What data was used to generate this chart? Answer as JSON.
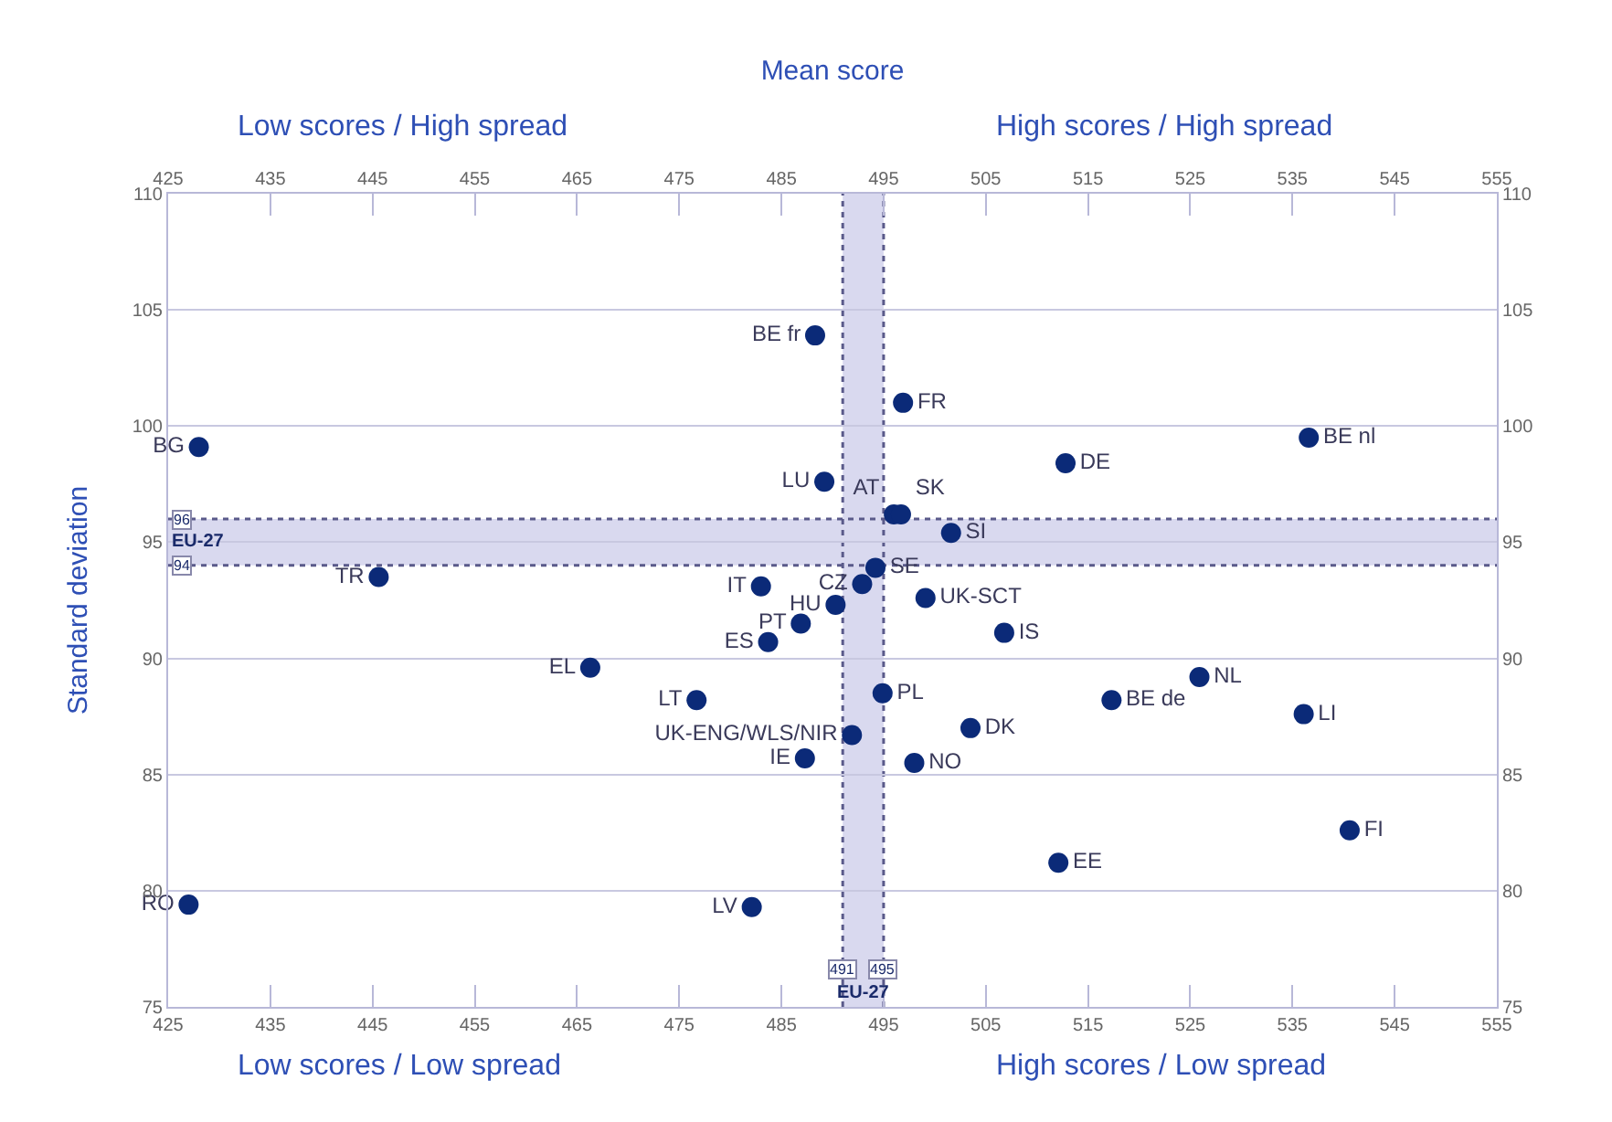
{
  "chart_data": {
    "type": "scatter",
    "x2label": "Mean score",
    "ylabel": "Standard deviation",
    "xlim": [
      425,
      555
    ],
    "xticks": [
      425,
      435,
      445,
      455,
      465,
      475,
      485,
      495,
      505,
      515,
      525,
      535,
      545,
      555
    ],
    "x2lim": [
      425,
      555
    ],
    "x2ticks": [
      425,
      435,
      445,
      455,
      465,
      475,
      485,
      495,
      505,
      515,
      525,
      535,
      545,
      555
    ],
    "ylim": [
      75,
      110
    ],
    "yticks": [
      75,
      80,
      85,
      90,
      95,
      100,
      105,
      110
    ],
    "y2lim": [
      75,
      110
    ],
    "y2ticks": [
      75,
      80,
      85,
      90,
      95,
      100,
      105,
      110
    ],
    "grid": "y",
    "legend": false,
    "marker": "circle",
    "bands": [
      {
        "axis": "y",
        "from": 94,
        "to": 96,
        "label": "EU-27",
        "color": "#d9d9ef"
      },
      {
        "axis": "x",
        "from": 491,
        "to": 495,
        "label": "EU-27",
        "color": "#d9d9ef"
      }
    ],
    "ref_lines": [
      {
        "axis": "y",
        "value": 96,
        "label": "96",
        "color": "#5a5a8a",
        "line_style": "dotted"
      },
      {
        "axis": "y",
        "value": 94,
        "label": "94",
        "color": "#5a5a8a",
        "line_style": "dotted"
      },
      {
        "axis": "x",
        "value": 491,
        "label": "491",
        "color": "#5a5a8a",
        "line_style": "dotted"
      },
      {
        "axis": "x",
        "value": 495,
        "label": "495",
        "color": "#5a5a8a",
        "line_style": "dotted"
      }
    ],
    "annotations": [
      "Low scores / High spread",
      "High scores / High spread",
      "Low scores / Low spread",
      "High scores / Low spread"
    ],
    "series": [
      {
        "name": "BG",
        "color": "#0b2a78",
        "x": [
          428.0
        ],
        "values": [
          99.1
        ]
      },
      {
        "name": "BE fr",
        "color": "#0b2a78",
        "x": [
          488.3
        ],
        "values": [
          103.9
        ]
      },
      {
        "name": "FR",
        "color": "#0b2a78",
        "x": [
          496.9
        ],
        "values": [
          101.0
        ]
      },
      {
        "name": "LU",
        "color": "#0b2a78",
        "x": [
          489.2
        ],
        "values": [
          97.6
        ]
      },
      {
        "name": "AT",
        "color": "#0b2a78",
        "x": [
          496.0
        ],
        "values": [
          96.2
        ]
      },
      {
        "name": "SK",
        "color": "#0b2a78",
        "x": [
          496.7
        ],
        "values": [
          96.2
        ]
      },
      {
        "name": "SI",
        "color": "#0b2a78",
        "x": [
          501.6
        ],
        "values": [
          95.4
        ]
      },
      {
        "name": "DE",
        "color": "#0b2a78",
        "x": [
          512.8
        ],
        "values": [
          98.4
        ]
      },
      {
        "name": "BE nl",
        "color": "#0b2a78",
        "x": [
          536.6
        ],
        "values": [
          99.5
        ]
      },
      {
        "name": "TR",
        "color": "#0b2a78",
        "x": [
          445.6
        ],
        "values": [
          93.5
        ]
      },
      {
        "name": "IT",
        "color": "#0b2a78",
        "x": [
          483.0
        ],
        "values": [
          93.1
        ]
      },
      {
        "name": "CZ",
        "color": "#0b2a78",
        "x": [
          492.9
        ],
        "values": [
          93.2
        ]
      },
      {
        "name": "SE",
        "color": "#0b2a78",
        "x": [
          494.2
        ],
        "values": [
          93.9
        ]
      },
      {
        "name": "HU",
        "color": "#0b2a78",
        "x": [
          490.3
        ],
        "values": [
          92.3
        ]
      },
      {
        "name": "PT",
        "color": "#0b2a78",
        "x": [
          486.9
        ],
        "values": [
          91.5
        ]
      },
      {
        "name": "ES",
        "color": "#0b2a78",
        "x": [
          483.7
        ],
        "values": [
          90.7
        ]
      },
      {
        "name": "UK-SCT",
        "color": "#0b2a78",
        "x": [
          499.1
        ],
        "values": [
          92.6
        ]
      },
      {
        "name": "IS",
        "color": "#0b2a78",
        "x": [
          506.8
        ],
        "values": [
          91.1
        ]
      },
      {
        "name": "EL",
        "color": "#0b2a78",
        "x": [
          466.3
        ],
        "values": [
          89.6
        ]
      },
      {
        "name": "LT",
        "color": "#0b2a78",
        "x": [
          476.7
        ],
        "values": [
          88.2
        ]
      },
      {
        "name": "UK-ENG/WLS/NIR",
        "color": "#0b2a78",
        "x": [
          491.9
        ],
        "values": [
          86.7
        ]
      },
      {
        "name": "PL",
        "color": "#0b2a78",
        "x": [
          494.9
        ],
        "values": [
          88.5
        ]
      },
      {
        "name": "IE",
        "color": "#0b2a78",
        "x": [
          487.3
        ],
        "values": [
          85.7
        ]
      },
      {
        "name": "NO",
        "color": "#0b2a78",
        "x": [
          498.0
        ],
        "values": [
          85.5
        ]
      },
      {
        "name": "DK",
        "color": "#0b2a78",
        "x": [
          503.5
        ],
        "values": [
          87.0
        ]
      },
      {
        "name": "BE de",
        "color": "#0b2a78",
        "x": [
          517.3
        ],
        "values": [
          88.2
        ]
      },
      {
        "name": "NL",
        "color": "#0b2a78",
        "x": [
          525.9
        ],
        "values": [
          89.2
        ]
      },
      {
        "name": "LI",
        "color": "#0b2a78",
        "x": [
          536.1
        ],
        "values": [
          87.6
        ]
      },
      {
        "name": "FI",
        "color": "#0b2a78",
        "x": [
          540.6
        ],
        "values": [
          82.6
        ]
      },
      {
        "name": "EE",
        "color": "#0b2a78",
        "x": [
          512.1
        ],
        "values": [
          81.2
        ]
      },
      {
        "name": "LV",
        "color": "#0b2a78",
        "x": [
          482.1
        ],
        "values": [
          79.3
        ]
      },
      {
        "name": "RO",
        "color": "#0b2a78",
        "x": [
          427.0
        ],
        "values": [
          79.4
        ]
      }
    ]
  }
}
